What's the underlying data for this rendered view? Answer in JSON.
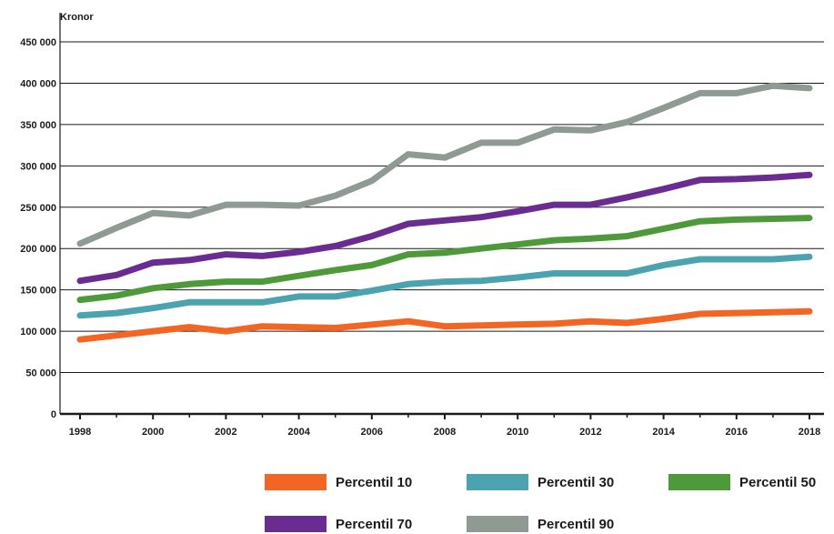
{
  "chart_data": {
    "type": "line",
    "ylabel": "Kronor",
    "ylim": [
      0,
      450000
    ],
    "yticks": [
      0,
      50000,
      100000,
      150000,
      200000,
      250000,
      300000,
      350000,
      400000,
      450000
    ],
    "ytick_labels": [
      "0",
      "50 000",
      "100 000",
      "150 000",
      "200 000",
      "250 000",
      "300 000",
      "350 000",
      "400 000",
      "450 000"
    ],
    "xlim": [
      1998,
      2018
    ],
    "xticks": [
      1998,
      2000,
      2002,
      2004,
      2006,
      2008,
      2010,
      2012,
      2014,
      2016,
      2018
    ],
    "xtick_labels": [
      "1998",
      "2000",
      "2002",
      "2004",
      "2006",
      "2008",
      "2010",
      "2012",
      "2014",
      "2016",
      "2018"
    ],
    "grid": "horizontal",
    "legend_position": "bottom",
    "series": [
      {
        "name": "Percentil 10",
        "color": "#f26522",
        "x": [
          1998,
          1999,
          2000,
          2001,
          2002,
          2003,
          2004,
          2005,
          2006,
          2007,
          2008,
          2009,
          2010,
          2011,
          2012,
          2013,
          2014,
          2015,
          2016,
          2017,
          2018
        ],
        "values": [
          90000,
          95000,
          100000,
          105000,
          100000,
          106000,
          105000,
          104000,
          108000,
          112000,
          106000,
          107000,
          108000,
          109000,
          112000,
          110000,
          115000,
          121000,
          122000,
          123000,
          124000
        ]
      },
      {
        "name": "Percentil 30",
        "color": "#4ba3b0",
        "x": [
          1998,
          1999,
          2000,
          2001,
          2002,
          2003,
          2004,
          2005,
          2006,
          2007,
          2008,
          2009,
          2010,
          2011,
          2012,
          2013,
          2014,
          2015,
          2016,
          2017,
          2018
        ],
        "values": [
          119000,
          122000,
          128000,
          135000,
          135000,
          135000,
          142000,
          142000,
          149000,
          157000,
          160000,
          161000,
          165000,
          170000,
          170000,
          170000,
          180000,
          187000,
          187000,
          187000,
          190000
        ]
      },
      {
        "name": "Percentil 50",
        "color": "#4e9a3a",
        "x": [
          1998,
          1999,
          2000,
          2001,
          2002,
          2003,
          2004,
          2005,
          2006,
          2007,
          2008,
          2009,
          2010,
          2011,
          2012,
          2013,
          2014,
          2015,
          2016,
          2017,
          2018
        ],
        "values": [
          138000,
          143000,
          152000,
          157000,
          160000,
          160000,
          167000,
          174000,
          180000,
          193000,
          195000,
          200000,
          205000,
          210000,
          212000,
          215000,
          224000,
          233000,
          235000,
          236000,
          237000
        ]
      },
      {
        "name": "Percentil 70",
        "color": "#6a2c91",
        "x": [
          1998,
          1999,
          2000,
          2001,
          2002,
          2003,
          2004,
          2005,
          2006,
          2007,
          2008,
          2009,
          2010,
          2011,
          2012,
          2013,
          2014,
          2015,
          2016,
          2017,
          2018
        ],
        "values": [
          161000,
          168000,
          183000,
          186000,
          193000,
          191000,
          196000,
          203000,
          215000,
          230000,
          234000,
          238000,
          245000,
          253000,
          253000,
          262000,
          272000,
          283000,
          284000,
          286000,
          289000
        ]
      },
      {
        "name": "Percentil 90",
        "color": "#8f9a92",
        "x": [
          1998,
          1999,
          2000,
          2001,
          2002,
          2003,
          2004,
          2005,
          2006,
          2007,
          2008,
          2009,
          2010,
          2011,
          2012,
          2013,
          2014,
          2015,
          2016,
          2017,
          2018
        ],
        "values": [
          206000,
          225000,
          243000,
          240000,
          253000,
          253000,
          252000,
          264000,
          282000,
          314000,
          310000,
          328000,
          328000,
          344000,
          343000,
          353000,
          370000,
          388000,
          388000,
          397000,
          394000
        ]
      }
    ]
  }
}
